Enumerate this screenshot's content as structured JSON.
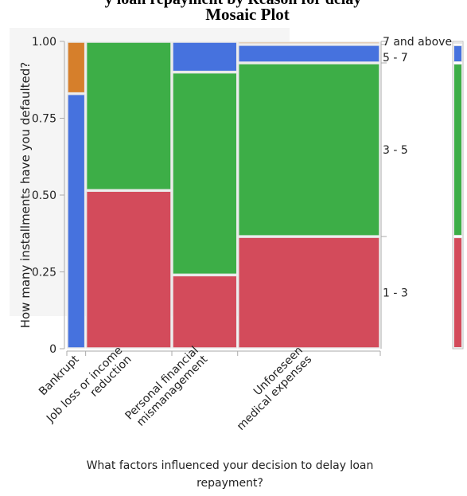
{
  "chart_data": {
    "type": "mosaic",
    "title": "Mosaic Plot",
    "title_partial_top": "y loan repayment by Reason for delay",
    "xlabel_line1": "What factors influenced your decision to delay loan",
    "xlabel_line2": "repayment?",
    "ylabel": "How many installments have you defaulted?",
    "ylim": [
      0,
      1
    ],
    "yticks": [
      "0",
      "0.25",
      "0.50",
      "0.75",
      "1.00"
    ],
    "ytick_values": [
      0,
      0.25,
      0.5,
      0.75,
      1.0
    ],
    "categories": [
      {
        "label_lines": [
          "Bankrupt"
        ],
        "width_fraction": 0.06
      },
      {
        "label_lines": [
          "Job loss or income",
          "reduction"
        ],
        "width_fraction": 0.275
      },
      {
        "label_lines": [
          "Personal financial",
          "mismanagement"
        ],
        "width_fraction": 0.21
      },
      {
        "label_lines": [
          "Unforeseen",
          "medical expenses"
        ],
        "width_fraction": 0.455
      }
    ],
    "series": [
      {
        "name": "1 - 3",
        "color": "#d34b5b",
        "values": [
          0.0,
          0.515,
          0.24,
          0.365
        ]
      },
      {
        "name": "3 - 5",
        "color": "#3dae47",
        "values": [
          0.0,
          0.485,
          0.66,
          0.565
        ]
      },
      {
        "name": "5 - 7",
        "color": "#4672de",
        "values": [
          0.83,
          0.0,
          0.1,
          0.06
        ]
      },
      {
        "name": "7 and above",
        "color": "#d67f2b",
        "values": [
          0.17,
          0.0,
          0.0,
          0.01
        ]
      }
    ],
    "right_labels": [
      "7 and above",
      "5 - 7",
      "3 - 5",
      "1 - 3"
    ],
    "legend_bar": [
      {
        "name": "1 - 3",
        "fraction": 0.365
      },
      {
        "name": "3 - 5",
        "fraction": 0.565
      },
      {
        "name": "5 - 7",
        "fraction": 0.06
      },
      {
        "name": "7 and above",
        "fraction": 0.01
      }
    ]
  }
}
